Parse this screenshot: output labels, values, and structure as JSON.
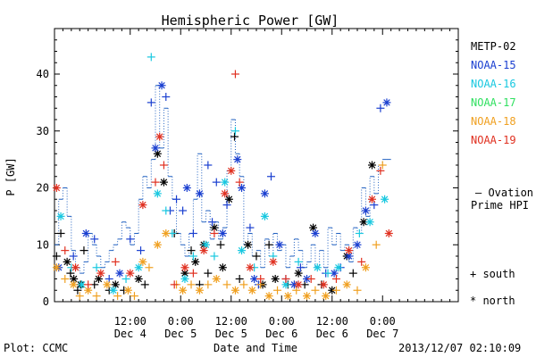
{
  "chart_data": {
    "type": "scatter",
    "title": "Hemispheric Power [GW]",
    "ylabel": "P [GW]",
    "xlabel": "Date and Time",
    "ylim": [
      0,
      48
    ],
    "xlim_hours": [
      0,
      96
    ],
    "y_ticks": [
      0,
      10,
      20,
      30,
      40
    ],
    "x_ticks": [
      {
        "hour": 18,
        "line1": "12:00",
        "line2": "Dec 4"
      },
      {
        "hour": 30,
        "line1": "0:00",
        "line2": "Dec 5"
      },
      {
        "hour": 42,
        "line1": "12:00",
        "line2": "Dec 5"
      },
      {
        "hour": 54,
        "line1": "0:00",
        "line2": "Dec 6"
      },
      {
        "hour": 66,
        "line1": "12:00",
        "line2": "Dec 6"
      },
      {
        "hour": 78,
        "line1": "0:00",
        "line2": "Dec 7"
      }
    ],
    "grid": false,
    "legend": [
      {
        "name": "METP-02",
        "color": "#000000"
      },
      {
        "name": "NOAA-15",
        "color": "#1a3fd0"
      },
      {
        "name": "NOAA-16",
        "color": "#18c8e0"
      },
      {
        "name": "NOAA-17",
        "color": "#30e060"
      },
      {
        "name": "NOAA-18",
        "color": "#f0a020"
      },
      {
        "name": "NOAA-19",
        "color": "#e03020"
      }
    ],
    "ovation_label_line1": "— Ovation",
    "ovation_label_line2": "Prime HPI",
    "ovation_color": "#2060c0",
    "marker_key": [
      {
        "symbol": "+",
        "label": "south"
      },
      {
        "symbol": "*",
        "label": "north"
      }
    ],
    "ovation": [
      [
        0,
        10
      ],
      [
        1,
        18
      ],
      [
        2,
        20
      ],
      [
        3,
        15
      ],
      [
        4,
        9
      ],
      [
        5,
        6
      ],
      [
        6,
        5
      ],
      [
        7,
        7
      ],
      [
        8,
        12
      ],
      [
        9,
        10
      ],
      [
        10,
        8
      ],
      [
        11,
        6
      ],
      [
        12,
        7
      ],
      [
        13,
        9
      ],
      [
        14,
        10
      ],
      [
        15,
        11
      ],
      [
        16,
        14
      ],
      [
        17,
        13
      ],
      [
        18,
        10
      ],
      [
        19,
        12
      ],
      [
        20,
        18
      ],
      [
        21,
        22
      ],
      [
        22,
        20
      ],
      [
        23,
        25
      ],
      [
        24,
        38
      ],
      [
        25,
        27
      ],
      [
        26,
        34
      ],
      [
        27,
        22
      ],
      [
        28,
        18
      ],
      [
        29,
        12
      ],
      [
        30,
        10
      ],
      [
        31,
        8
      ],
      [
        32,
        12
      ],
      [
        33,
        18
      ],
      [
        34,
        26
      ],
      [
        35,
        14
      ],
      [
        36,
        16
      ],
      [
        37,
        11
      ],
      [
        38,
        14
      ],
      [
        39,
        11
      ],
      [
        40,
        13
      ],
      [
        41,
        23
      ],
      [
        42,
        32
      ],
      [
        43,
        26
      ],
      [
        44,
        22
      ],
      [
        45,
        10
      ],
      [
        46,
        12
      ],
      [
        47,
        8
      ],
      [
        48,
        9
      ],
      [
        49,
        6
      ],
      [
        50,
        11
      ],
      [
        51,
        8
      ],
      [
        52,
        12
      ],
      [
        53,
        9
      ],
      [
        54,
        10
      ],
      [
        55,
        6
      ],
      [
        56,
        8
      ],
      [
        57,
        11
      ],
      [
        58,
        9
      ],
      [
        59,
        6
      ],
      [
        60,
        7
      ],
      [
        61,
        10
      ],
      [
        62,
        6
      ],
      [
        63,
        9
      ],
      [
        64,
        6
      ],
      [
        65,
        13
      ],
      [
        66,
        10
      ],
      [
        67,
        12
      ],
      [
        68,
        9
      ],
      [
        69,
        10
      ],
      [
        70,
        7
      ],
      [
        71,
        13
      ],
      [
        72,
        12
      ],
      [
        73,
        20
      ],
      [
        74,
        15
      ],
      [
        75,
        22
      ],
      [
        76,
        19
      ],
      [
        77,
        24
      ],
      [
        78,
        25
      ],
      [
        79,
        25
      ]
    ],
    "series": [
      {
        "name": "METP-02",
        "points": [
          [
            0.5,
            8,
            "+"
          ],
          [
            1.5,
            12,
            "+"
          ],
          [
            3.0,
            7,
            "*"
          ],
          [
            3.8,
            5,
            "+"
          ],
          [
            4.6,
            4,
            "*"
          ],
          [
            5.5,
            2,
            "+"
          ],
          [
            6.2,
            3,
            "*"
          ],
          [
            7.0,
            9,
            "+"
          ],
          [
            9.5,
            3,
            "+"
          ],
          [
            10.5,
            4,
            "*"
          ],
          [
            13.0,
            2,
            "+"
          ],
          [
            14.5,
            3,
            "*"
          ],
          [
            16.5,
            2,
            "+"
          ],
          [
            20.0,
            4,
            "*"
          ],
          [
            21.5,
            3,
            "+"
          ],
          [
            24.5,
            26,
            "*"
          ],
          [
            26.0,
            21,
            "*"
          ],
          [
            28.5,
            12,
            "+"
          ],
          [
            31.0,
            5,
            "*"
          ],
          [
            32.5,
            9,
            "+"
          ],
          [
            33.5,
            7,
            "*"
          ],
          [
            34.5,
            3,
            "+"
          ],
          [
            35.5,
            10,
            "*"
          ],
          [
            36.5,
            5,
            "+"
          ],
          [
            38.0,
            13,
            "*"
          ],
          [
            39.5,
            10,
            "+"
          ],
          [
            40.0,
            6,
            "*"
          ],
          [
            41.5,
            18,
            "*"
          ],
          [
            42.8,
            29,
            "+"
          ],
          [
            44.0,
            4,
            "+"
          ],
          [
            46.0,
            10,
            "*"
          ],
          [
            48.0,
            8,
            "+"
          ],
          [
            49.5,
            3,
            "*"
          ],
          [
            51.0,
            10,
            "+"
          ],
          [
            52.5,
            4,
            "*"
          ],
          [
            55.5,
            3,
            "+"
          ],
          [
            58.0,
            5,
            "*"
          ],
          [
            59.5,
            3,
            "+"
          ],
          [
            61.5,
            13,
            "*"
          ],
          [
            63.5,
            3,
            "+"
          ],
          [
            66.0,
            2,
            "*"
          ],
          [
            69.5,
            8,
            "*"
          ],
          [
            71.0,
            5,
            "+"
          ],
          [
            73.5,
            14,
            "*"
          ],
          [
            75.5,
            24,
            "*"
          ]
        ]
      },
      {
        "name": "NOAA-15",
        "points": [
          [
            1.0,
            6,
            "*"
          ],
          [
            4.5,
            8,
            "+"
          ],
          [
            7.5,
            12,
            "*"
          ],
          [
            9.5,
            11,
            "+"
          ],
          [
            13.0,
            4,
            "+"
          ],
          [
            15.5,
            5,
            "*"
          ],
          [
            18.0,
            11,
            "+"
          ],
          [
            20.5,
            9,
            "+"
          ],
          [
            23.0,
            35,
            "+"
          ],
          [
            24.0,
            27,
            "*"
          ],
          [
            25.5,
            38,
            "*"
          ],
          [
            26.5,
            36,
            "+"
          ],
          [
            27.5,
            16,
            "+"
          ],
          [
            29.0,
            18,
            "+"
          ],
          [
            30.5,
            16,
            "+"
          ],
          [
            31.5,
            20,
            "*"
          ],
          [
            33.0,
            12,
            "+"
          ],
          [
            34.5,
            19,
            "*"
          ],
          [
            36.5,
            24,
            "+"
          ],
          [
            37.5,
            14,
            "+"
          ],
          [
            38.5,
            21,
            "+"
          ],
          [
            40.0,
            12,
            "*"
          ],
          [
            41.0,
            17,
            "+"
          ],
          [
            43.5,
            25,
            "*"
          ],
          [
            44.5,
            20,
            "*"
          ],
          [
            46.5,
            13,
            "+"
          ],
          [
            47.5,
            4,
            "*"
          ],
          [
            48.5,
            3,
            "+"
          ],
          [
            50.0,
            19,
            "*"
          ],
          [
            51.5,
            22,
            "+"
          ],
          [
            53.5,
            10,
            "*"
          ],
          [
            55.0,
            4,
            "+"
          ],
          [
            57.0,
            3,
            "*"
          ],
          [
            58.5,
            6,
            "+"
          ],
          [
            60.0,
            4,
            "*"
          ],
          [
            62.0,
            12,
            "*"
          ],
          [
            64.5,
            5,
            "+"
          ],
          [
            66.5,
            5,
            "*"
          ],
          [
            68.0,
            6,
            "+"
          ],
          [
            70.0,
            8,
            "*"
          ],
          [
            72.0,
            10,
            "*"
          ],
          [
            74.0,
            16,
            "*"
          ],
          [
            76.0,
            17,
            "+"
          ],
          [
            77.5,
            34,
            "+"
          ],
          [
            79.0,
            35,
            "*"
          ]
        ]
      },
      {
        "name": "NOAA-16",
        "points": [
          [
            1.5,
            15,
            "*"
          ],
          [
            4.0,
            6,
            "+"
          ],
          [
            6.5,
            3,
            "*"
          ],
          [
            10.0,
            6,
            "+"
          ],
          [
            14.0,
            2,
            "*"
          ],
          [
            17.0,
            4,
            "+"
          ],
          [
            20.0,
            6,
            "*"
          ],
          [
            23.0,
            43,
            "+"
          ],
          [
            24.5,
            19,
            "*"
          ],
          [
            26.5,
            16,
            "+"
          ],
          [
            28.0,
            12,
            "+"
          ],
          [
            31.0,
            4,
            "*"
          ],
          [
            33.0,
            8,
            "+"
          ],
          [
            36.0,
            10,
            "*"
          ],
          [
            38.0,
            8,
            "+"
          ],
          [
            40.5,
            21,
            "*"
          ],
          [
            43.0,
            30,
            "+"
          ],
          [
            44.5,
            9,
            "*"
          ],
          [
            47.5,
            6,
            "+"
          ],
          [
            50.0,
            15,
            "*"
          ],
          [
            52.0,
            8,
            "+"
          ],
          [
            55.0,
            3,
            "*"
          ],
          [
            58.0,
            7,
            "+"
          ],
          [
            62.5,
            6,
            "*"
          ],
          [
            65.0,
            5,
            "+"
          ],
          [
            67.5,
            6,
            "*"
          ],
          [
            72.5,
            12,
            "+"
          ],
          [
            75.0,
            14,
            "*"
          ],
          [
            78.5,
            18,
            "*"
          ]
        ]
      },
      {
        "name": "NOAA-17",
        "points": []
      },
      {
        "name": "NOAA-18",
        "points": [
          [
            0.5,
            6,
            "*"
          ],
          [
            2.5,
            4,
            "+"
          ],
          [
            4.5,
            3,
            "*"
          ],
          [
            6.0,
            1,
            "+"
          ],
          [
            8.0,
            2,
            "*"
          ],
          [
            10.0,
            1,
            "+"
          ],
          [
            12.5,
            3,
            "*"
          ],
          [
            15.0,
            1,
            "+"
          ],
          [
            17.5,
            2,
            "*"
          ],
          [
            19.0,
            1,
            "+"
          ],
          [
            21.0,
            7,
            "*"
          ],
          [
            22.5,
            6,
            "+"
          ],
          [
            24.5,
            10,
            "*"
          ],
          [
            26.5,
            12,
            "*"
          ],
          [
            29.0,
            3,
            "+"
          ],
          [
            30.5,
            2,
            "*"
          ],
          [
            32.5,
            3,
            "+"
          ],
          [
            34.5,
            2,
            "*"
          ],
          [
            36.5,
            3,
            "+"
          ],
          [
            38.5,
            4,
            "*"
          ],
          [
            41.0,
            3,
            "+"
          ],
          [
            43.0,
            2,
            "*"
          ],
          [
            45.0,
            3,
            "+"
          ],
          [
            47.0,
            2,
            "*"
          ],
          [
            49.0,
            3,
            "+"
          ],
          [
            51.0,
            1,
            "*"
          ],
          [
            53.0,
            2,
            "+"
          ],
          [
            55.5,
            1,
            "*"
          ],
          [
            57.5,
            2,
            "+"
          ],
          [
            60.0,
            1,
            "*"
          ],
          [
            62.0,
            2,
            "+"
          ],
          [
            64.5,
            1,
            "*"
          ],
          [
            67.0,
            2,
            "+"
          ],
          [
            69.5,
            3,
            "*"
          ],
          [
            72.0,
            2,
            "+"
          ],
          [
            74.0,
            6,
            "*"
          ],
          [
            76.5,
            10,
            "+"
          ],
          [
            78.0,
            24,
            "+"
          ]
        ]
      },
      {
        "name": "NOAA-19",
        "points": [
          [
            0.5,
            20,
            "*"
          ],
          [
            2.5,
            9,
            "+"
          ],
          [
            5.0,
            6,
            "*"
          ],
          [
            8.0,
            3,
            "+"
          ],
          [
            11.0,
            5,
            "*"
          ],
          [
            14.5,
            7,
            "+"
          ],
          [
            18.0,
            5,
            "*"
          ],
          [
            21.0,
            17,
            "*"
          ],
          [
            24.0,
            21,
            "+"
          ],
          [
            25.0,
            29,
            "*"
          ],
          [
            26.0,
            24,
            "+"
          ],
          [
            28.5,
            3,
            "+"
          ],
          [
            31.0,
            6,
            "*"
          ],
          [
            33.0,
            5,
            "+"
          ],
          [
            35.5,
            9,
            "*"
          ],
          [
            38.0,
            12,
            "+"
          ],
          [
            40.5,
            19,
            "*"
          ],
          [
            42.0,
            23,
            "*"
          ],
          [
            43.0,
            40,
            "+"
          ],
          [
            44.0,
            21,
            "+"
          ],
          [
            46.5,
            6,
            "*"
          ],
          [
            49.0,
            4,
            "+"
          ],
          [
            52.0,
            7,
            "*"
          ],
          [
            55.0,
            4,
            "+"
          ],
          [
            58.0,
            3,
            "*"
          ],
          [
            61.0,
            4,
            "+"
          ],
          [
            64.0,
            3,
            "*"
          ],
          [
            67.0,
            4,
            "+"
          ],
          [
            70.0,
            9,
            "*"
          ],
          [
            73.0,
            7,
            "+"
          ],
          [
            75.5,
            18,
            "*"
          ],
          [
            77.5,
            23,
            "+"
          ],
          [
            79.5,
            12,
            "*"
          ]
        ]
      }
    ]
  },
  "footer": {
    "plot_label": "Plot: CCMC",
    "timestamp": "2013/12/07 02:10:09"
  }
}
